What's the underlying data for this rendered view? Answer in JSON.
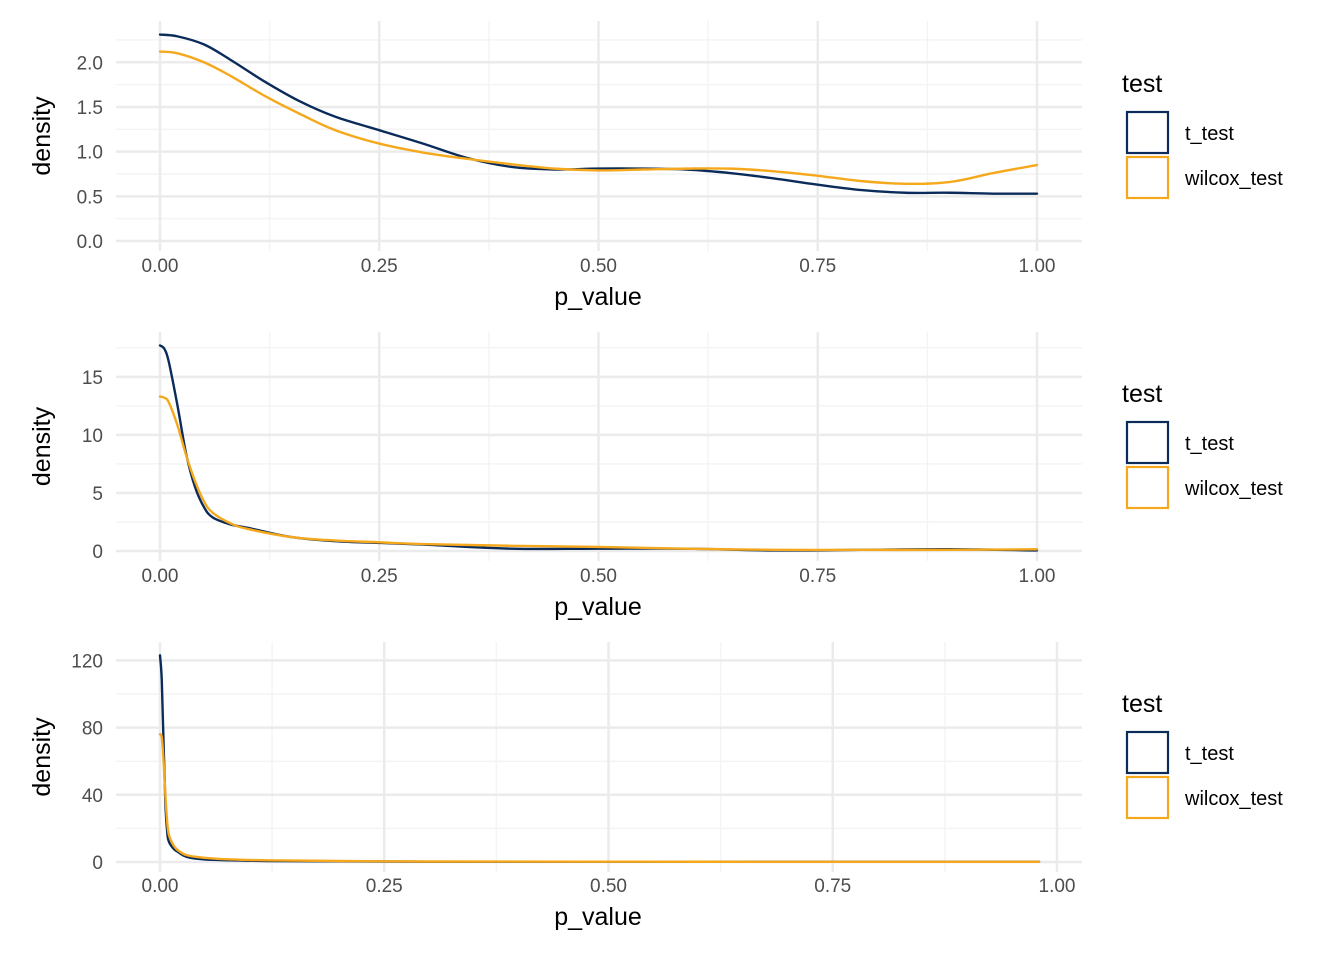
{
  "colors": {
    "t_test": "#0b2c5a",
    "wilcox_test": "#f5a81c",
    "grid_major": "#ebebeb",
    "grid_minor": "#f4f4f4"
  },
  "chart_data": [
    {
      "type": "line",
      "xlabel": "p_value",
      "ylabel": "density",
      "xlim": [
        0,
        1
      ],
      "ylim": [
        0,
        2.35
      ],
      "x_ticks": [
        0,
        0.25,
        0.5,
        0.75,
        1
      ],
      "x_tick_labels": [
        "0.00",
        "0.25",
        "0.50",
        "0.75",
        "1.00"
      ],
      "y_ticks": [
        0,
        0.5,
        1,
        1.5,
        2
      ],
      "y_tick_labels": [
        "0.0",
        "0.5",
        "1.0",
        "1.5",
        "2.0"
      ],
      "grid": true,
      "legend": {
        "title": "test",
        "position": "right",
        "entries": [
          "t_test",
          "wilcox_test"
        ]
      },
      "series": [
        {
          "name": "t_test",
          "color": "#0b2c5a",
          "x": [
            0,
            0.02,
            0.05,
            0.08,
            0.12,
            0.16,
            0.2,
            0.25,
            0.3,
            0.35,
            0.4,
            0.45,
            0.5,
            0.55,
            0.6,
            0.65,
            0.7,
            0.75,
            0.8,
            0.85,
            0.9,
            0.95,
            1.0
          ],
          "y": [
            2.31,
            2.29,
            2.2,
            2.03,
            1.78,
            1.56,
            1.39,
            1.24,
            1.09,
            0.93,
            0.83,
            0.8,
            0.81,
            0.81,
            0.8,
            0.76,
            0.7,
            0.63,
            0.57,
            0.54,
            0.54,
            0.53,
            0.53
          ]
        },
        {
          "name": "wilcox_test",
          "color": "#f5a81c",
          "x": [
            0,
            0.02,
            0.05,
            0.08,
            0.12,
            0.16,
            0.2,
            0.25,
            0.3,
            0.35,
            0.4,
            0.45,
            0.5,
            0.55,
            0.6,
            0.65,
            0.7,
            0.75,
            0.8,
            0.85,
            0.9,
            0.95,
            1.0
          ],
          "y": [
            2.12,
            2.1,
            2.0,
            1.85,
            1.62,
            1.42,
            1.24,
            1.09,
            0.99,
            0.92,
            0.86,
            0.81,
            0.79,
            0.8,
            0.81,
            0.81,
            0.78,
            0.73,
            0.67,
            0.64,
            0.66,
            0.76,
            0.85
          ]
        }
      ]
    },
    {
      "type": "line",
      "xlabel": "p_value",
      "ylabel": "density",
      "xlim": [
        0,
        1
      ],
      "ylim": [
        0,
        18
      ],
      "x_ticks": [
        0,
        0.25,
        0.5,
        0.75,
        1
      ],
      "x_tick_labels": [
        "0.00",
        "0.25",
        "0.50",
        "0.75",
        "1.00"
      ],
      "y_ticks": [
        0,
        5,
        10,
        15
      ],
      "y_tick_labels": [
        "0",
        "5",
        "10",
        "15"
      ],
      "grid": true,
      "legend": {
        "title": "test",
        "position": "right",
        "entries": [
          "t_test",
          "wilcox_test"
        ]
      },
      "series": [
        {
          "name": "t_test",
          "color": "#0b2c5a",
          "x": [
            0,
            0.005,
            0.01,
            0.02,
            0.03,
            0.04,
            0.05,
            0.06,
            0.08,
            0.1,
            0.15,
            0.2,
            0.25,
            0.3,
            0.4,
            0.5,
            0.6,
            0.7,
            0.8,
            0.9,
            1.0
          ],
          "y": [
            17.7,
            17.4,
            16.3,
            12.5,
            8.3,
            5.5,
            3.8,
            2.9,
            2.3,
            2.0,
            1.2,
            0.85,
            0.7,
            0.55,
            0.2,
            0.2,
            0.2,
            0.05,
            0.1,
            0.15,
            0.05
          ]
        },
        {
          "name": "wilcox_test",
          "color": "#f5a81c",
          "x": [
            0,
            0.005,
            0.01,
            0.02,
            0.03,
            0.04,
            0.05,
            0.06,
            0.08,
            0.1,
            0.15,
            0.2,
            0.25,
            0.3,
            0.4,
            0.5,
            0.6,
            0.7,
            0.8,
            0.9,
            1.0
          ],
          "y": [
            13.3,
            13.2,
            12.8,
            10.8,
            8.2,
            6.0,
            4.3,
            3.3,
            2.4,
            1.9,
            1.2,
            0.9,
            0.75,
            0.6,
            0.45,
            0.35,
            0.2,
            0.1,
            0.1,
            0.1,
            0.15
          ]
        }
      ]
    },
    {
      "type": "line",
      "xlabel": "p_value",
      "ylabel": "density",
      "xlim": [
        0,
        1
      ],
      "ylim": [
        0,
        125
      ],
      "x_ticks": [
        0,
        0.25,
        0.5,
        0.75,
        1
      ],
      "x_tick_labels": [
        "0.00",
        "0.25",
        "0.50",
        "0.75",
        "1.00"
      ],
      "y_ticks": [
        0,
        40,
        80,
        120
      ],
      "y_tick_labels": [
        "0",
        "40",
        "80",
        "120"
      ],
      "grid": true,
      "legend": {
        "title": "test",
        "position": "right",
        "entries": [
          "t_test",
          "wilcox_test"
        ]
      },
      "series": [
        {
          "name": "t_test",
          "color": "#0b2c5a",
          "x": [
            0,
            0.002,
            0.004,
            0.006,
            0.008,
            0.01,
            0.015,
            0.02,
            0.03,
            0.05,
            0.08,
            0.12,
            0.2,
            0.3,
            0.5,
            0.7,
            0.9,
            0.98
          ],
          "y": [
            123,
            108,
            70,
            35,
            18,
            12,
            8,
            6,
            3,
            1.5,
            1.0,
            0.6,
            0.4,
            0.2,
            0.2,
            0.1,
            0.1,
            0.1
          ]
        },
        {
          "name": "wilcox_test",
          "color": "#f5a81c",
          "x": [
            0,
            0.002,
            0.004,
            0.006,
            0.008,
            0.01,
            0.015,
            0.02,
            0.03,
            0.05,
            0.08,
            0.12,
            0.2,
            0.3,
            0.5,
            0.7,
            0.9,
            0.98
          ],
          "y": [
            76,
            74,
            60,
            40,
            24,
            16,
            10,
            7,
            4,
            2.5,
            1.5,
            1.0,
            0.6,
            0.3,
            0.2,
            0.1,
            0.1,
            0.1
          ]
        }
      ]
    }
  ]
}
